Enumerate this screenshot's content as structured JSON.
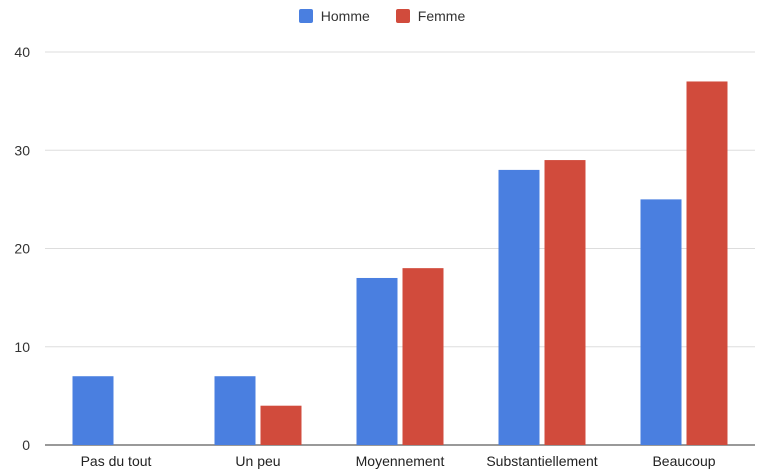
{
  "chart_data": {
    "type": "bar",
    "categories": [
      "Pas du tout",
      "Un peu",
      "Moyennement",
      "Substantiellement",
      "Beaucoup"
    ],
    "series": [
      {
        "name": "Homme",
        "color": "#4a7fe0",
        "values": [
          7,
          7,
          17,
          28,
          25
        ]
      },
      {
        "name": "Femme",
        "color": "#d14b3c",
        "values": [
          0,
          4,
          18,
          29,
          37
        ]
      }
    ],
    "ylim": [
      0,
      40
    ],
    "yticks": [
      "0",
      "10",
      "20",
      "30",
      "40"
    ],
    "grid": true,
    "legend_position": "top"
  }
}
